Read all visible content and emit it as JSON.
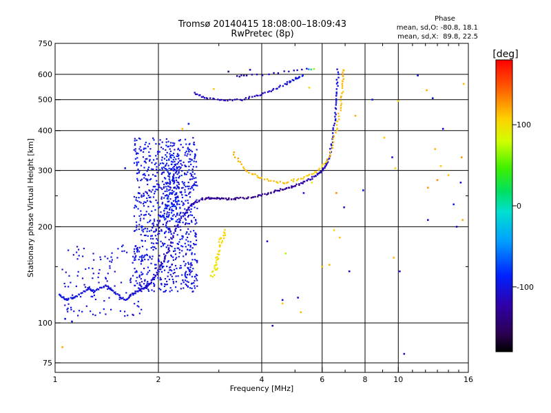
{
  "chart_data": {
    "type": "scatter",
    "title": "Tromsø 20140415 18:08:00–18:09:43",
    "subtitle": "RwPretec (8p)",
    "xlabel": "Frequency [MHz]",
    "ylabel": "Stationary phase Virtual Height [km]",
    "xscale": "log",
    "yscale": "log",
    "xlim": [
      1,
      16
    ],
    "ylim": [
      70,
      750
    ],
    "xticks": [
      1,
      2,
      4,
      6,
      8,
      10,
      16
    ],
    "xtick_labels": [
      "1",
      "2",
      "4",
      "6",
      "8",
      "10",
      "16"
    ],
    "xminor": [
      3,
      5,
      7,
      9,
      11,
      12,
      13,
      14,
      15
    ],
    "yticks": [
      75,
      100,
      200,
      300,
      400,
      500,
      600,
      750
    ],
    "ytick_labels": [
      "75",
      "100",
      "200",
      "300",
      "400",
      "500",
      "600",
      "750"
    ],
    "yminor": [
      150,
      250
    ],
    "grid": true,
    "phase_stats": {
      "title": "Phase",
      "line1": "mean, sd,O: -80.8, 18.1",
      "line2": "mean, sd,X:  89.8, 22.5"
    },
    "colorbar": {
      "label": "[deg]",
      "range": [
        -180,
        180
      ],
      "ticks": [
        100,
        0,
        -100
      ],
      "tick_labels": [
        "100",
        "0",
        "-100"
      ],
      "colormap": "rainbow"
    },
    "traces": [
      {
        "name": "",
        "points": [
          [
            1.03,
            122,
            -95
          ],
          [
            1.08,
            118,
            -98
          ],
          [
            1.15,
            121,
            -100
          ],
          [
            1.25,
            128,
            -102
          ],
          [
            1.3,
            126,
            -100
          ],
          [
            1.4,
            131,
            -104
          ],
          [
            1.5,
            124,
            -100
          ],
          [
            1.6,
            118,
            -102
          ],
          [
            1.7,
            124,
            -104
          ],
          [
            1.8,
            128,
            -106
          ],
          [
            1.9,
            133,
            -108
          ],
          [
            2.0,
            145,
            -110
          ],
          [
            2.1,
            160,
            -112
          ],
          [
            2.2,
            185,
            -112
          ],
          [
            2.35,
            215,
            -115
          ],
          [
            2.5,
            235,
            -118
          ],
          [
            2.7,
            245,
            -125
          ],
          [
            2.9,
            246,
            -130
          ],
          [
            3.1,
            244,
            -135
          ],
          [
            3.4,
            245,
            -135
          ],
          [
            3.8,
            248,
            -133
          ],
          [
            4.2,
            255,
            -130
          ],
          [
            4.6,
            262,
            -128
          ],
          [
            5.0,
            268,
            -125
          ],
          [
            5.4,
            278,
            -122
          ],
          [
            5.8,
            290,
            -118
          ],
          [
            6.1,
            305,
            -114
          ],
          [
            6.3,
            330,
            -110
          ],
          [
            6.45,
            380,
            -108
          ],
          [
            6.55,
            450,
            -104
          ],
          [
            6.62,
            530,
            -100
          ],
          [
            6.68,
            630,
            -98
          ]
        ],
        "spread": 0.012,
        "n": 10,
        "jitter": 4
      },
      {
        "name": "",
        "points": [
          [
            2.55,
            525,
            -108
          ],
          [
            2.75,
            505,
            -112
          ],
          [
            3.1,
            498,
            -118
          ],
          [
            3.5,
            500,
            -116
          ],
          [
            3.9,
            515,
            -112
          ],
          [
            4.3,
            535,
            -108
          ],
          [
            4.7,
            560,
            -104
          ],
          [
            5.0,
            580,
            -100
          ],
          [
            5.3,
            600,
            -98
          ]
        ],
        "spread": 0.012,
        "n": 8,
        "jitter": 4
      },
      {
        "name": "",
        "points": [
          [
            3.3,
            340,
            118
          ],
          [
            3.6,
            300,
            116
          ],
          [
            4.0,
            283,
            114
          ],
          [
            4.6,
            274,
            112
          ],
          [
            5.2,
            283,
            110
          ],
          [
            5.8,
            298,
            108
          ],
          [
            6.3,
            330,
            110
          ],
          [
            6.6,
            400,
            112
          ],
          [
            6.8,
            480,
            114
          ],
          [
            6.9,
            560,
            116
          ],
          [
            6.95,
            630,
            118
          ]
        ],
        "spread": 0.014,
        "n": 9,
        "jitter": 6
      },
      {
        "name": "",
        "points": [
          [
            2.85,
            140,
            92
          ],
          [
            2.95,
            150,
            96
          ],
          [
            3.0,
            165,
            100
          ],
          [
            3.05,
            180,
            105
          ],
          [
            3.1,
            195,
            108
          ]
        ],
        "spread": 0.03,
        "n": 10,
        "jitter": 5
      },
      {
        "name": "",
        "points": [
          [
            3.4,
            590,
            -120
          ],
          [
            3.6,
            595,
            -118
          ],
          [
            4.2,
            600,
            -112
          ],
          [
            4.8,
            615,
            -110
          ],
          [
            5.4,
            625,
            -108
          ],
          [
            5.8,
            620,
            120
          ]
        ],
        "spread": 0.01,
        "n": 4,
        "jitter": 6
      }
    ],
    "clouds": [
      {
        "name": "",
        "xrange": [
          1.7,
          2.6
        ],
        "yrange": [
          125,
          380
        ],
        "count": 900,
        "hue": [
          -112,
          -85
        ]
      },
      {
        "name": "",
        "xrange": [
          2.05,
          2.3
        ],
        "yrange": [
          210,
          340
        ],
        "count": 120,
        "hue": [
          -105,
          -80
        ]
      },
      {
        "name": "",
        "xrange": [
          1.05,
          1.8
        ],
        "yrange": [
          105,
          175
        ],
        "count": 120,
        "hue": [
          -108,
          -95
        ]
      }
    ],
    "scatter_points": [
      [
        1.05,
        84,
        120
      ],
      [
        1.07,
        103,
        -100
      ],
      [
        1.12,
        101,
        -102
      ],
      [
        1.6,
        305,
        -95
      ],
      [
        1.75,
        255,
        -98
      ],
      [
        2.35,
        405,
        115
      ],
      [
        2.45,
        420,
        -100
      ],
      [
        2.9,
        540,
        110
      ],
      [
        3.2,
        612,
        -125
      ],
      [
        3.7,
        620,
        -110
      ],
      [
        4.15,
        180,
        -110
      ],
      [
        4.3,
        98,
        -120
      ],
      [
        4.6,
        118,
        -105
      ],
      [
        4.6,
        115,
        110
      ],
      [
        4.7,
        165,
        70
      ],
      [
        5.1,
        120,
        -100
      ],
      [
        5.2,
        108,
        115
      ],
      [
        5.3,
        255,
        -100
      ],
      [
        5.5,
        545,
        105
      ],
      [
        5.6,
        275,
        90
      ],
      [
        6.0,
        150,
        115
      ],
      [
        6.3,
        152,
        115
      ],
      [
        6.5,
        195,
        105
      ],
      [
        6.6,
        255,
        130
      ],
      [
        6.75,
        185,
        110
      ],
      [
        6.95,
        230,
        -110
      ],
      [
        7.2,
        145,
        -110
      ],
      [
        7.5,
        445,
        120
      ],
      [
        7.9,
        260,
        -98
      ],
      [
        8.4,
        500,
        -100
      ],
      [
        9.1,
        380,
        110
      ],
      [
        9.6,
        330,
        -100
      ],
      [
        9.8,
        305,
        95
      ],
      [
        9.7,
        160,
        115
      ],
      [
        10.0,
        495,
        100
      ],
      [
        10.1,
        145,
        -105
      ],
      [
        10.4,
        80,
        -110
      ],
      [
        11.4,
        595,
        -100
      ],
      [
        12.1,
        535,
        120
      ],
      [
        12.2,
        265,
        125
      ],
      [
        12.2,
        210,
        -110
      ],
      [
        12.6,
        505,
        -100
      ],
      [
        12.8,
        350,
        115
      ],
      [
        13.0,
        280,
        130
      ],
      [
        13.3,
        310,
        110
      ],
      [
        13.5,
        405,
        -110
      ],
      [
        14.0,
        290,
        110
      ],
      [
        14.5,
        235,
        -100
      ],
      [
        14.8,
        200,
        -120
      ],
      [
        15.2,
        275,
        -110
      ],
      [
        15.3,
        330,
        125
      ],
      [
        15.4,
        210,
        120
      ],
      [
        15.5,
        560,
        115
      ]
    ]
  }
}
